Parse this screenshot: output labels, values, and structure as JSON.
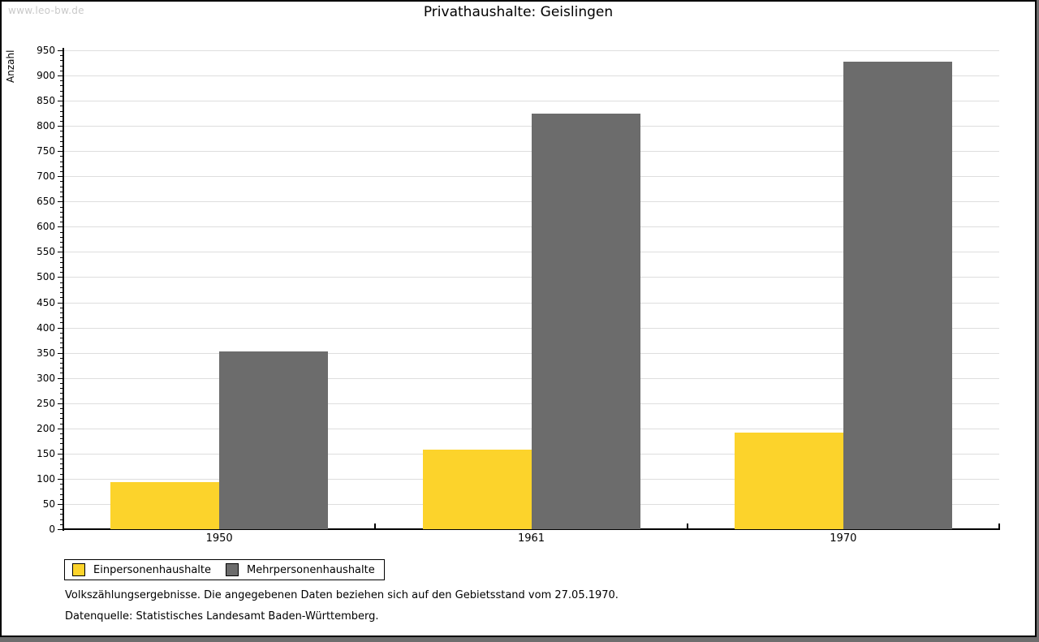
{
  "watermark": "www.leo-bw.de",
  "chart_data": {
    "type": "bar",
    "title": "Privathaushalte: Geislingen",
    "ylabel": "Anzahl",
    "xlabel": "",
    "categories": [
      "1950",
      "1961",
      "1970"
    ],
    "series": [
      {
        "name": "Einpersonenhaushalte",
        "color": "#FCD32B",
        "values": [
          93,
          158,
          191
        ]
      },
      {
        "name": "Mehrpersonenhaushalte",
        "color": "#6C6C6C",
        "values": [
          352,
          824,
          928
        ]
      }
    ],
    "ylim": [
      0,
      950
    ],
    "y_major_step": 50,
    "y_minor_step": 10,
    "grid": "horizontal",
    "legend_position": "bottom-left"
  },
  "footer": {
    "note": "Volkszählungsergebnisse. Die angegebenen Daten beziehen sich auf den Gebietsstand vom 27.05.1970.",
    "source": "Datenquelle: Statistisches Landesamt Baden-Württemberg."
  }
}
